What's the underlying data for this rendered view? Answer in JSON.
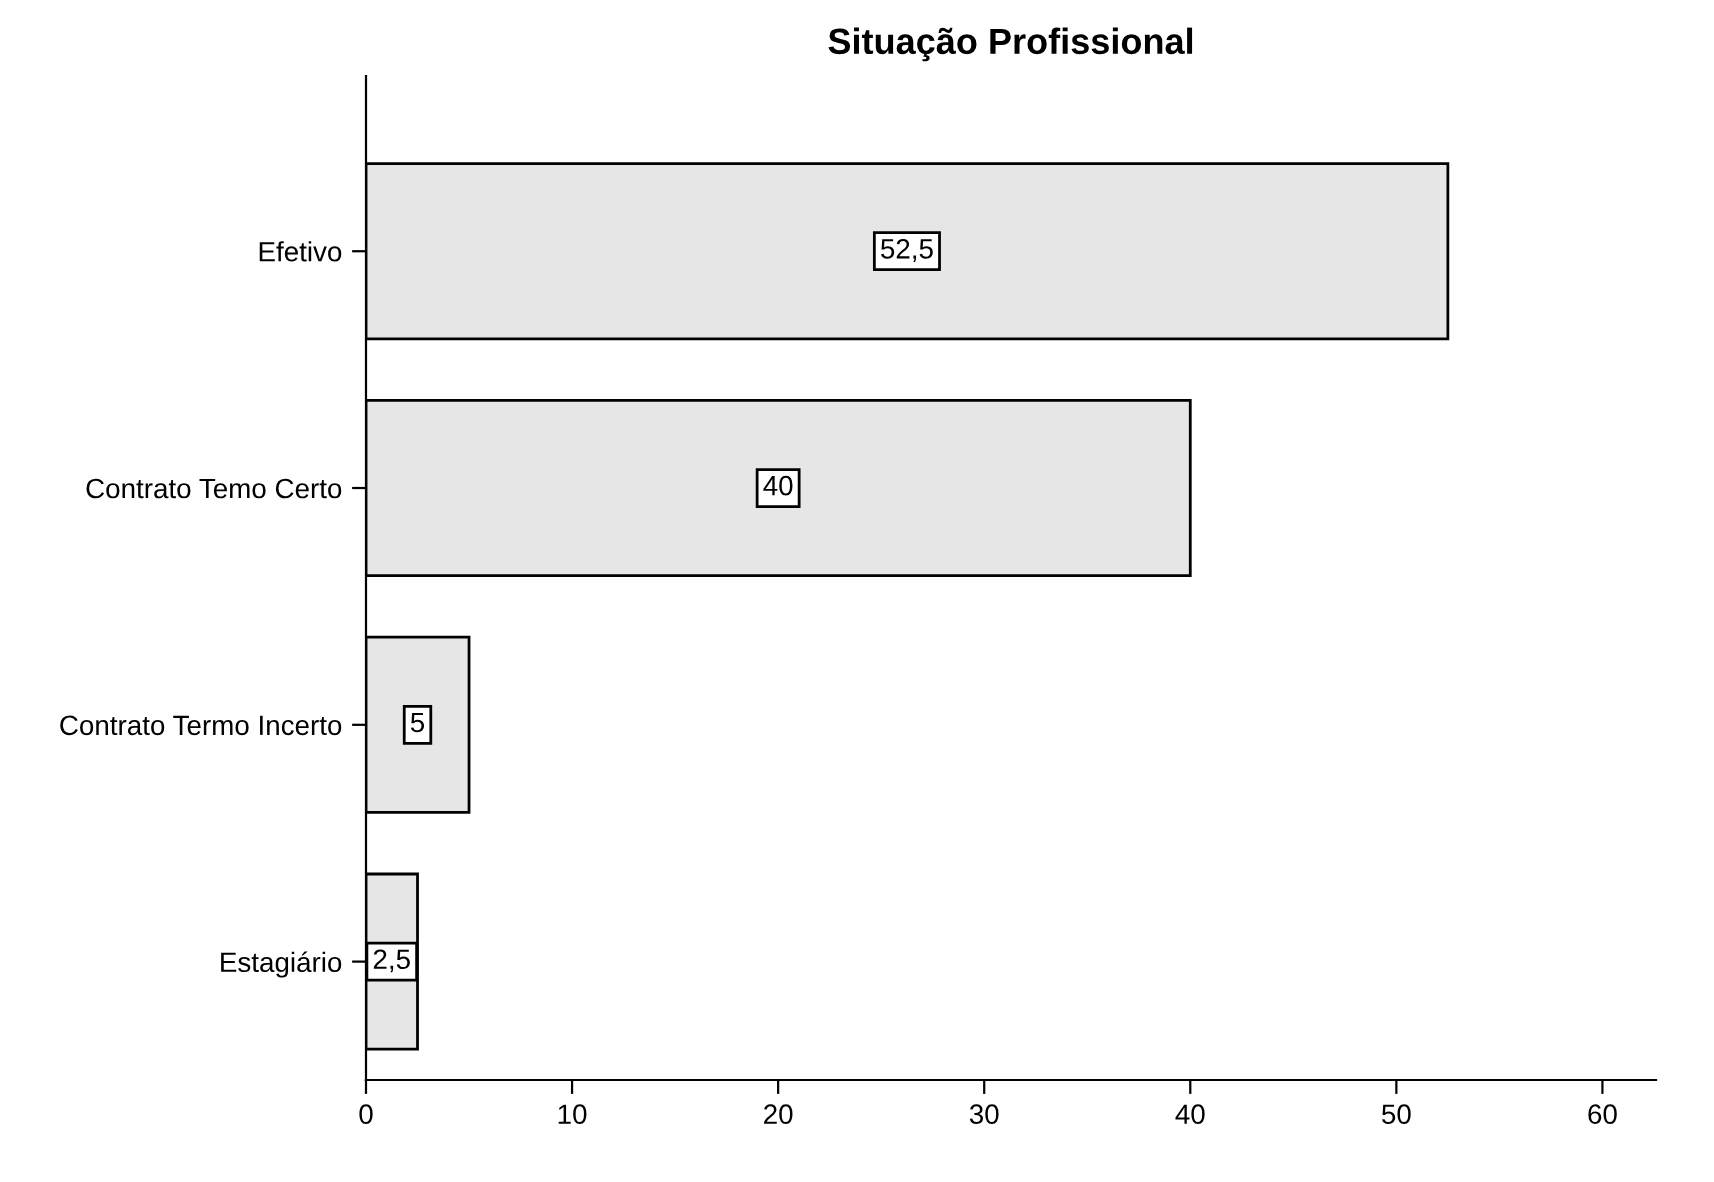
{
  "chart_data": {
    "type": "bar",
    "orientation": "horizontal",
    "title": "Situação Profissional",
    "categories": [
      "Efetivo",
      "Contrato Temo Certo",
      "Contrato Termo Incerto",
      "Estagiário"
    ],
    "values": [
      52.5,
      40,
      5,
      2.5
    ],
    "value_labels": [
      "52,5",
      "40",
      "5",
      "2,5"
    ],
    "color": "#e6e6e6",
    "xlim": [
      0,
      62.6
    ],
    "xticks": [
      0,
      10,
      20,
      30,
      40,
      50,
      60
    ],
    "grid": false,
    "legend": false
  }
}
